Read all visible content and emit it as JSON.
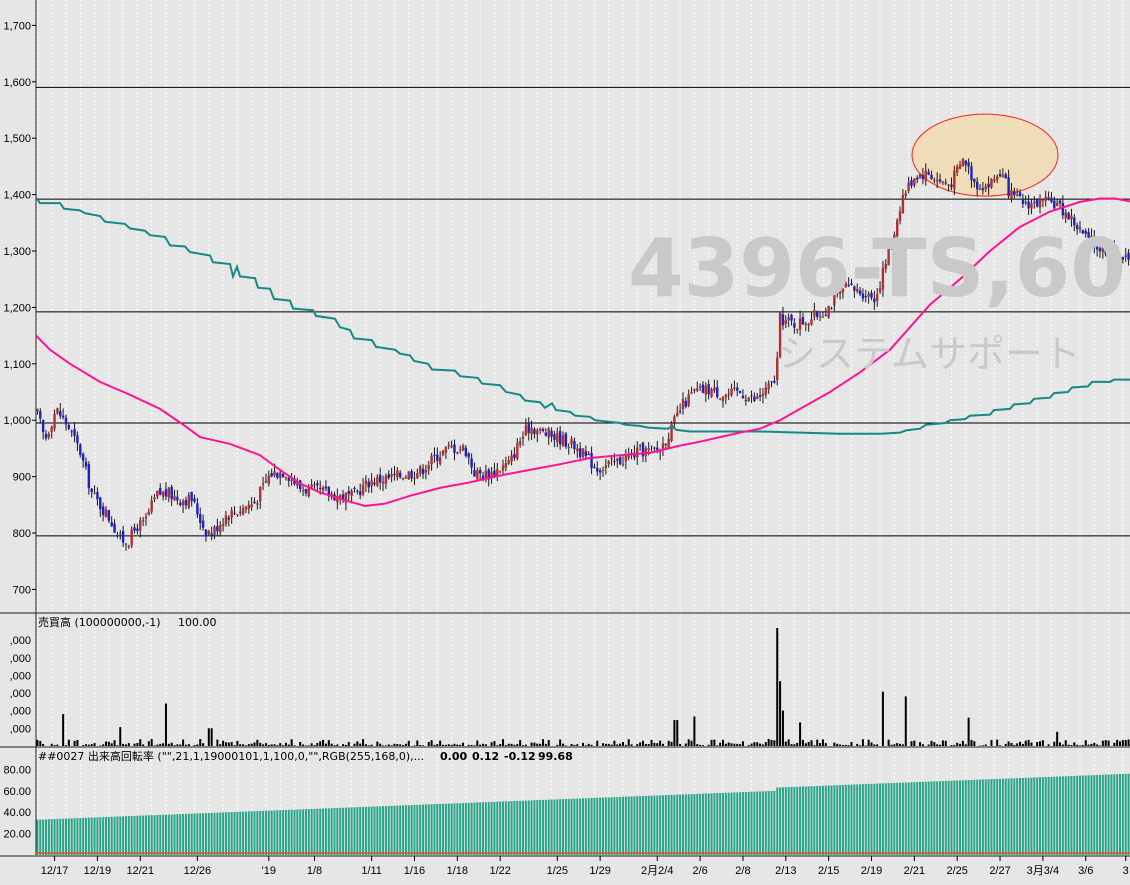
{
  "watermark": {
    "code": "4396-TS,60",
    "company": "システムサポート"
  },
  "colors": {
    "up": "#b03030",
    "down": "#2020c0",
    "ma_short": "#ff1493",
    "ma_long": "#148a84",
    "turnover": "#2aa58a",
    "highlight_fill": "#efdcb8",
    "highlight_stroke": "#ff2020"
  },
  "price_panel": {
    "y_ticks": [
      "700",
      "800",
      "900",
      "1,000",
      "1,100",
      "1,200",
      "1,300",
      "1,400",
      "1,500",
      "1,600",
      "1,700"
    ],
    "y_values": [
      700,
      800,
      900,
      1000,
      1100,
      1200,
      1300,
      1400,
      1500,
      1600,
      1700
    ],
    "ylim": [
      660,
      1745
    ],
    "horizontal_lines": [
      795,
      995,
      1192,
      1392,
      1590
    ]
  },
  "volume_panel": {
    "title": "売買高 (100000000,-1)",
    "value": "100.00",
    "y_ticks": [
      ",000",
      ",000",
      ",000",
      ",000",
      ",000",
      ",000"
    ]
  },
  "turnover_panel": {
    "title": "##0027 出来高回転率 (\"\",21,1,19000101,1,100,0,\"\",RGB(255,168,0),...",
    "values": [
      "0.00",
      "0.12",
      "-0.12",
      "99.68"
    ],
    "value_colors": [
      "#ff2020",
      "#10c010",
      "#1e90ff",
      "#2aa58a"
    ],
    "y_ticks": [
      "20.00",
      "40.00",
      "60.00",
      "80.00"
    ],
    "y_values": [
      20,
      40,
      60,
      80
    ]
  },
  "x_axis": {
    "labels": [
      "12/17",
      "12/19",
      "12/21",
      "12/26",
      "'19",
      "1/8",
      "1/11",
      "1/16",
      "1/18",
      "1/22",
      "1/25",
      "1/29",
      "2月2/4",
      "2/6",
      "2/8",
      "2/13",
      "2/15",
      "2/19",
      "2/21",
      "2/25",
      "2/27",
      "3月3/4",
      "3/6",
      "3"
    ],
    "label_index": [
      6,
      21,
      36,
      56,
      81,
      97,
      117,
      132,
      147,
      162,
      182,
      197,
      217,
      232,
      247,
      262,
      277,
      292,
      307,
      322,
      337,
      352,
      367,
      381
    ]
  },
  "chart_data": {
    "type": "candlestick",
    "title": "4396-TS,60",
    "candle_count": 383,
    "price_path": [
      [
        0,
        975
      ],
      [
        12,
        965
      ],
      [
        22,
        1100
      ],
      [
        30,
        1090
      ],
      [
        36,
        1020
      ],
      [
        45,
        965
      ],
      [
        56,
        1020
      ],
      [
        68,
        990
      ],
      [
        80,
        945
      ],
      [
        92,
        870
      ],
      [
        110,
        825
      ],
      [
        120,
        790
      ],
      [
        128,
        785
      ],
      [
        138,
        815
      ],
      [
        144,
        815
      ],
      [
        152,
        850
      ],
      [
        158,
        870
      ],
      [
        168,
        870
      ],
      [
        180,
        860
      ],
      [
        192,
        860
      ],
      [
        205,
        805
      ],
      [
        212,
        800
      ],
      [
        226,
        832
      ],
      [
        240,
        842
      ],
      [
        255,
        855
      ],
      [
        270,
        905
      ],
      [
        285,
        910
      ],
      [
        300,
        880
      ],
      [
        316,
        875
      ],
      [
        330,
        870
      ],
      [
        340,
        865
      ],
      [
        352,
        865
      ],
      [
        370,
        892
      ],
      [
        390,
        898
      ],
      [
        405,
        905
      ],
      [
        420,
        910
      ],
      [
        435,
        935
      ],
      [
        450,
        952
      ],
      [
        465,
        950
      ],
      [
        475,
        905
      ],
      [
        490,
        905
      ],
      [
        510,
        925
      ],
      [
        520,
        965
      ],
      [
        530,
        990
      ],
      [
        540,
        980
      ],
      [
        560,
        968
      ],
      [
        575,
        955
      ],
      [
        585,
        935
      ],
      [
        598,
        915
      ],
      [
        615,
        925
      ],
      [
        640,
        945
      ],
      [
        660,
        948
      ],
      [
        672,
        988
      ],
      [
        682,
        1025
      ],
      [
        694,
        1050
      ],
      [
        710,
        1055
      ],
      [
        725,
        1045
      ],
      [
        740,
        1050
      ],
      [
        755,
        1035
      ],
      [
        770,
        1060
      ],
      [
        776,
        1075
      ],
      [
        780,
        1180
      ],
      [
        795,
        1170
      ],
      [
        810,
        1180
      ],
      [
        825,
        1195
      ],
      [
        845,
        1235
      ],
      [
        860,
        1228
      ],
      [
        876,
        1218
      ],
      [
        885,
        1275
      ],
      [
        895,
        1340
      ],
      [
        902,
        1395
      ],
      [
        915,
        1435
      ],
      [
        928,
        1438
      ],
      [
        938,
        1425
      ],
      [
        950,
        1418
      ],
      [
        964,
        1465
      ],
      [
        975,
        1420
      ],
      [
        988,
        1415
      ],
      [
        1000,
        1440
      ],
      [
        1012,
        1395
      ],
      [
        1025,
        1385
      ],
      [
        1040,
        1385
      ],
      [
        1055,
        1385
      ],
      [
        1070,
        1360
      ],
      [
        1085,
        1325
      ],
      [
        1100,
        1305
      ],
      [
        1115,
        1300
      ],
      [
        1130,
        1278
      ]
    ],
    "ma_short": [
      [
        36,
        1150
      ],
      [
        50,
        1125
      ],
      [
        70,
        1100
      ],
      [
        100,
        1068
      ],
      [
        130,
        1045
      ],
      [
        160,
        1020
      ],
      [
        185,
        990
      ],
      [
        200,
        970
      ],
      [
        230,
        958
      ],
      [
        260,
        938
      ],
      [
        280,
        912
      ],
      [
        300,
        888
      ],
      [
        320,
        872
      ],
      [
        345,
        858
      ],
      [
        365,
        848
      ],
      [
        385,
        852
      ],
      [
        410,
        866
      ],
      [
        440,
        880
      ],
      [
        470,
        890
      ],
      [
        500,
        902
      ],
      [
        530,
        912
      ],
      [
        560,
        922
      ],
      [
        590,
        933
      ],
      [
        620,
        938
      ],
      [
        650,
        942
      ],
      [
        680,
        955
      ],
      [
        700,
        962
      ],
      [
        720,
        970
      ],
      [
        740,
        978
      ],
      [
        760,
        985
      ],
      [
        780,
        1000
      ],
      [
        800,
        1020
      ],
      [
        830,
        1050
      ],
      [
        860,
        1085
      ],
      [
        890,
        1125
      ],
      [
        910,
        1165
      ],
      [
        930,
        1205
      ],
      [
        960,
        1250
      ],
      [
        990,
        1300
      ],
      [
        1020,
        1343
      ],
      [
        1050,
        1370
      ],
      [
        1080,
        1387
      ],
      [
        1100,
        1393
      ],
      [
        1115,
        1393
      ],
      [
        1130,
        1388
      ]
    ],
    "ma_long": [
      [
        36,
        1395
      ],
      [
        40,
        1385
      ],
      [
        60,
        1385
      ],
      [
        64,
        1375
      ],
      [
        80,
        1372
      ],
      [
        85,
        1367
      ],
      [
        100,
        1362
      ],
      [
        105,
        1352
      ],
      [
        125,
        1348
      ],
      [
        130,
        1340
      ],
      [
        145,
        1336
      ],
      [
        150,
        1328
      ],
      [
        165,
        1325
      ],
      [
        170,
        1310
      ],
      [
        185,
        1308
      ],
      [
        190,
        1298
      ],
      [
        210,
        1292
      ],
      [
        213,
        1280
      ],
      [
        230,
        1277
      ],
      [
        233,
        1255
      ],
      [
        237,
        1272
      ],
      [
        240,
        1255
      ],
      [
        255,
        1252
      ],
      [
        258,
        1235
      ],
      [
        270,
        1233
      ],
      [
        274,
        1215
      ],
      [
        290,
        1212
      ],
      [
        293,
        1198
      ],
      [
        313,
        1195
      ],
      [
        316,
        1185
      ],
      [
        335,
        1180
      ],
      [
        340,
        1165
      ],
      [
        350,
        1160
      ],
      [
        354,
        1145
      ],
      [
        372,
        1142
      ],
      [
        376,
        1130
      ],
      [
        395,
        1125
      ],
      [
        400,
        1118
      ],
      [
        410,
        1115
      ],
      [
        414,
        1105
      ],
      [
        428,
        1100
      ],
      [
        432,
        1090
      ],
      [
        455,
        1088
      ],
      [
        460,
        1078
      ],
      [
        478,
        1075
      ],
      [
        482,
        1065
      ],
      [
        500,
        1062
      ],
      [
        506,
        1050
      ],
      [
        520,
        1045
      ],
      [
        525,
        1035
      ],
      [
        540,
        1032
      ],
      [
        545,
        1022
      ],
      [
        552,
        1030
      ],
      [
        556,
        1018
      ],
      [
        570,
        1015
      ],
      [
        575,
        1008
      ],
      [
        590,
        1006
      ],
      [
        595,
        1000
      ],
      [
        620,
        995
      ],
      [
        625,
        992
      ],
      [
        640,
        990
      ],
      [
        648,
        987
      ],
      [
        668,
        985
      ],
      [
        672,
        990
      ],
      [
        676,
        983
      ],
      [
        690,
        980
      ],
      [
        720,
        980
      ],
      [
        760,
        980
      ],
      [
        800,
        978
      ],
      [
        840,
        976
      ],
      [
        880,
        976
      ],
      [
        900,
        978
      ],
      [
        906,
        982
      ],
      [
        920,
        985
      ],
      [
        926,
        992
      ],
      [
        945,
        995
      ],
      [
        950,
        1000
      ],
      [
        965,
        1002
      ],
      [
        970,
        1008
      ],
      [
        990,
        1010
      ],
      [
        994,
        1018
      ],
      [
        1010,
        1020
      ],
      [
        1014,
        1028
      ],
      [
        1030,
        1030
      ],
      [
        1034,
        1038
      ],
      [
        1050,
        1040
      ],
      [
        1054,
        1048
      ],
      [
        1068,
        1050
      ],
      [
        1072,
        1058
      ],
      [
        1088,
        1060
      ],
      [
        1092,
        1068
      ],
      [
        1110,
        1068
      ],
      [
        1114,
        1072
      ],
      [
        1130,
        1072
      ]
    ],
    "volume_spikes": [
      [
        62,
        0.27
      ],
      [
        120,
        0.16
      ],
      [
        166,
        0.36
      ],
      [
        210,
        0.15
      ],
      [
        676,
        0.22
      ],
      [
        695,
        0.25
      ],
      [
        778,
        1.0
      ],
      [
        781,
        0.55
      ],
      [
        784,
        0.3
      ],
      [
        800,
        0.2
      ],
      [
        884,
        0.46
      ],
      [
        906,
        0.42
      ],
      [
        968,
        0.24
      ],
      [
        1058,
        0.12
      ]
    ],
    "turnover_start": 33,
    "turnover_end": 73
  }
}
